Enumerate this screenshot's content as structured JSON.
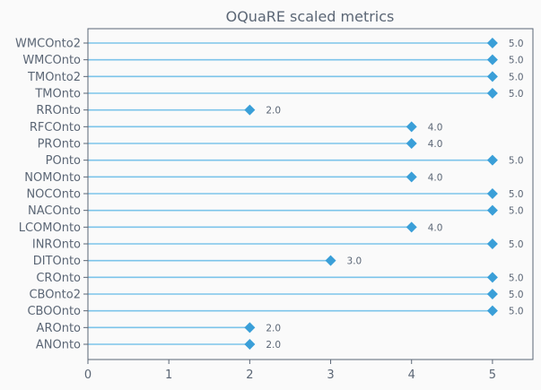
{
  "chart_data": {
    "type": "lollipop",
    "title": "OQuaRE scaled metrics",
    "xlabel": "",
    "ylabel": "",
    "xlim": [
      0,
      5.5
    ],
    "xticks": [
      0,
      1,
      2,
      3,
      4,
      5
    ],
    "grid": false,
    "categories": [
      "ANOnto",
      "AROnto",
      "CBOOnto",
      "CBOnto2",
      "CROnto",
      "DITOnto",
      "INROnto",
      "LCOMOnto",
      "NACOnto",
      "NOCOnto",
      "NOMOnto",
      "POnto",
      "PROnto",
      "RFCOnto",
      "RROnto",
      "TMOnto",
      "TMOnto2",
      "WMCOnto",
      "WMCOnto2"
    ],
    "values": [
      2.0,
      2.0,
      5.0,
      5.0,
      5.0,
      3.0,
      5.0,
      4.0,
      5.0,
      5.0,
      4.0,
      5.0,
      4.0,
      4.0,
      2.0,
      5.0,
      5.0,
      5.0,
      5.0
    ],
    "value_labels": [
      "2.0",
      "2.0",
      "5.0",
      "5.0",
      "5.0",
      "3.0",
      "5.0",
      "4.0",
      "5.0",
      "5.0",
      "4.0",
      "5.0",
      "4.0",
      "4.0",
      "2.0",
      "5.0",
      "5.0",
      "5.0",
      "5.0"
    ],
    "colors": {
      "stem": "#7cc4ea",
      "marker": "#3a9fd8",
      "axis": "#5b6675",
      "text": "#5b6675",
      "background": "#fafafa"
    }
  }
}
